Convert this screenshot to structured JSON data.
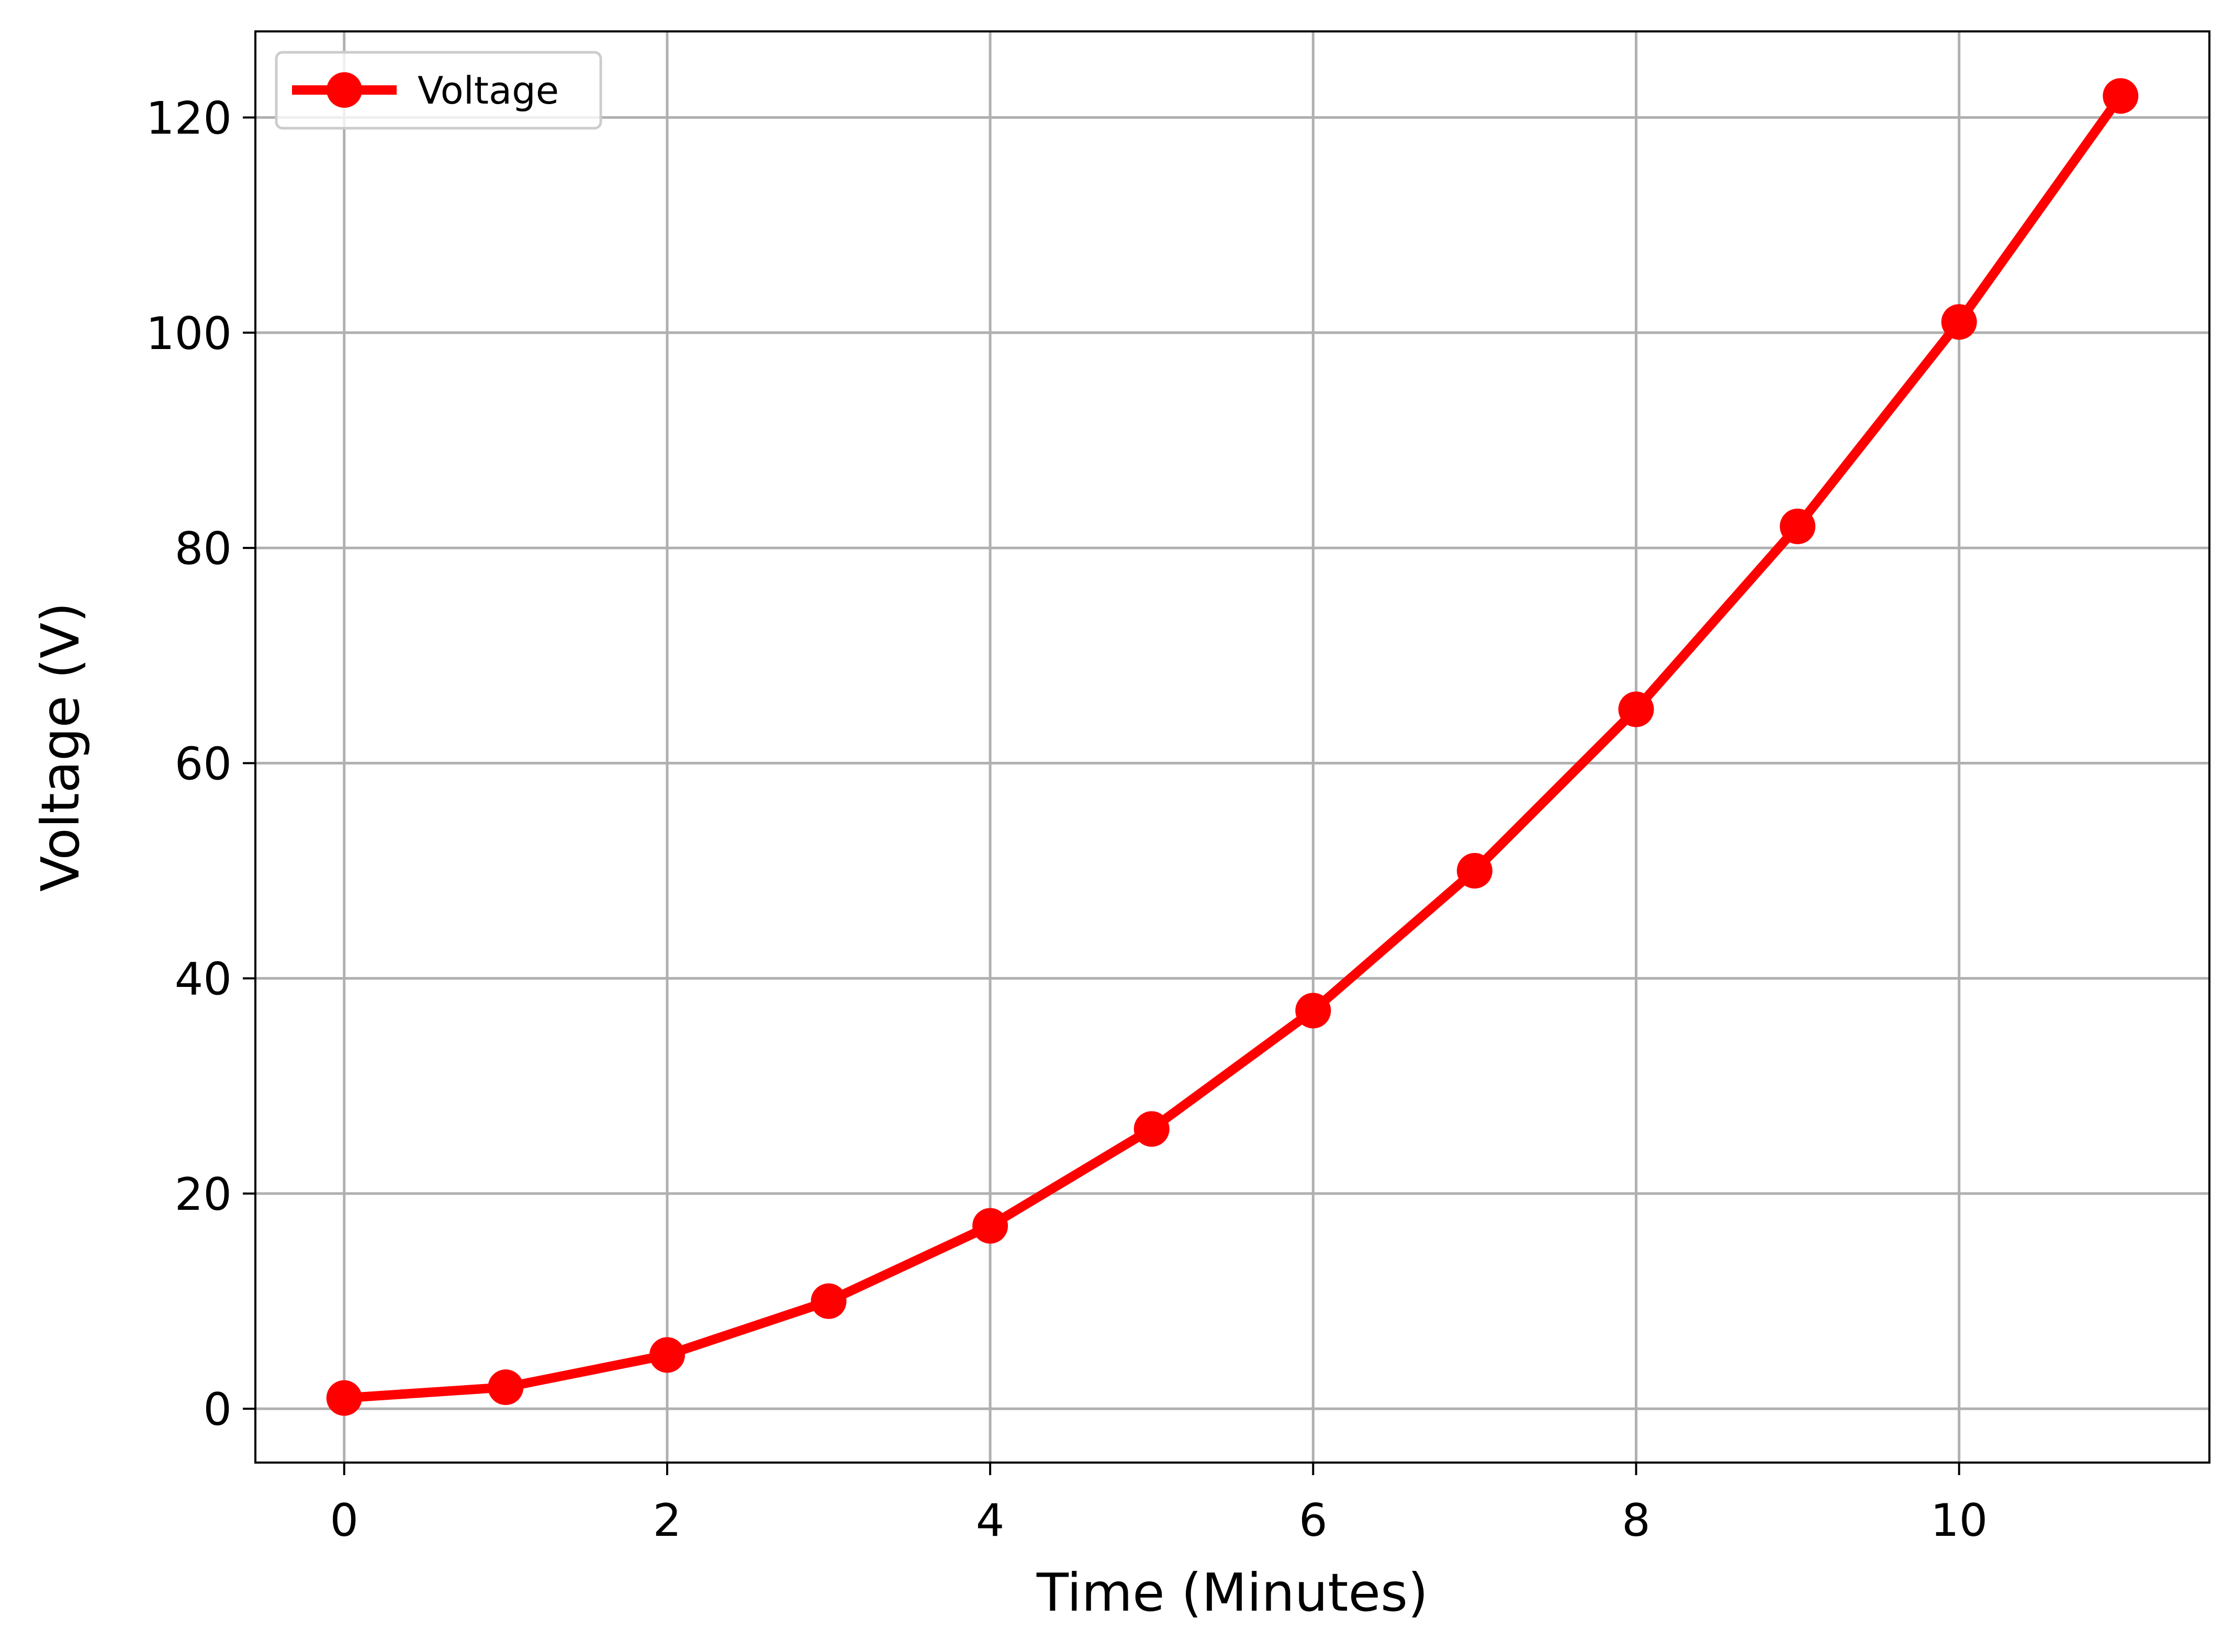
{
  "chart_data": {
    "type": "line",
    "title": "",
    "xlabel": "Time (Minutes)",
    "ylabel": "Voltage (V)",
    "x": [
      0,
      1,
      2,
      3,
      4,
      5,
      6,
      7,
      8,
      9,
      10,
      11
    ],
    "series": [
      {
        "name": "Voltage",
        "color": "#ff0000",
        "marker": "circle",
        "values": [
          1,
          2,
          5,
          10,
          17,
          26,
          37,
          50,
          65,
          82,
          101,
          122
        ]
      }
    ],
    "xlim": [
      -0.55,
      11.55
    ],
    "ylim": [
      -5,
      128
    ],
    "xticks": [
      0,
      2,
      4,
      6,
      8,
      10
    ],
    "yticks": [
      0,
      20,
      40,
      60,
      80,
      100,
      120
    ],
    "grid": true,
    "legend": "top-left"
  }
}
